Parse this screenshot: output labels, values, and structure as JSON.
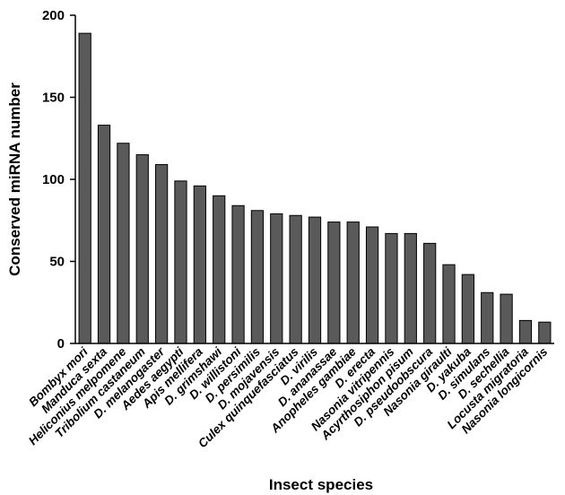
{
  "chart_data": {
    "type": "bar",
    "xlabel": "Insect species",
    "ylabel": "Conserved miRNA number",
    "ylim": [
      0,
      200
    ],
    "yticks": [
      0,
      50,
      100,
      150,
      200
    ],
    "categories": [
      "Bombyx mori",
      "Manduca sexta",
      "Heliconius melpomene",
      "Tribolium castaneum",
      "D. melanogaster",
      "Aedes aegypti",
      "Apis mellifera",
      "D. grimshawi",
      "D. willistoni",
      "D. persimilis",
      "D. mojavensis",
      "Culex quinquefasciatus",
      "D. virilis",
      "D. ananassae",
      "Anopheles gambiae",
      "D. erecta",
      "Nasonia vitripennis",
      "Acyrthosiphon pisum",
      "D. pseudoobscura",
      "Nasonia giraulti",
      "D. yakuba",
      "D. simulans",
      "D. sechellia",
      "Locusta migratoria",
      "Nasonia longicornis"
    ],
    "values": [
      189,
      133,
      122,
      115,
      109,
      99,
      96,
      90,
      84,
      81,
      79,
      78,
      77,
      74,
      74,
      71,
      67,
      67,
      61,
      48,
      42,
      31,
      30,
      14,
      13
    ],
    "colors": {
      "bar_fill": "#5a5a5a",
      "bar_stroke": "#000000"
    }
  }
}
